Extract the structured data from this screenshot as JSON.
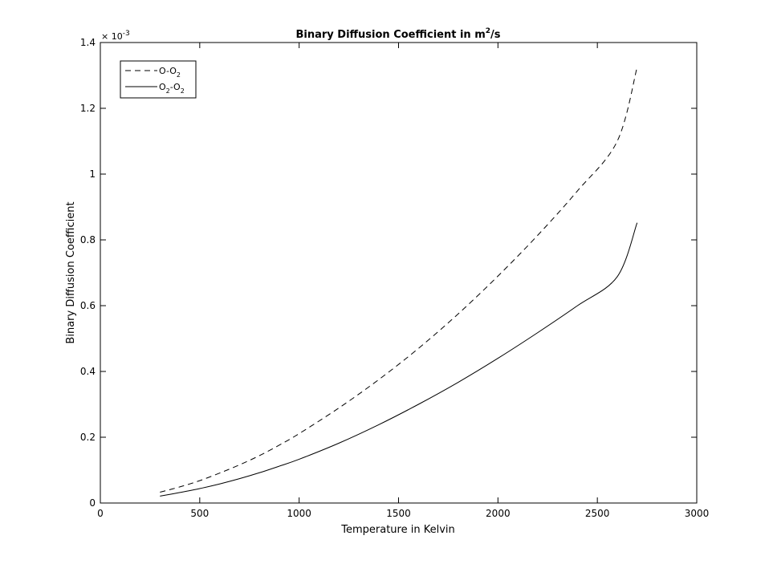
{
  "chart_data": {
    "type": "line",
    "title": {
      "prefix": "Binary Diffusion Coefficient in m",
      "sup": "2",
      "suffix": "/s"
    },
    "xlabel": "Temperature in Kelvin",
    "ylabel": "Binary Diffusion Coefficient",
    "y_exponent": {
      "base": "× 10",
      "sup": "-3"
    },
    "xlim": [
      0,
      3000
    ],
    "ylim": [
      0,
      1.4
    ],
    "xticks": [
      0,
      500,
      1000,
      1500,
      2000,
      2500,
      3000
    ],
    "yticks": [
      0,
      0.2,
      0.4,
      0.6,
      0.8,
      1,
      1.2,
      1.4
    ],
    "xtick_labels": [
      "0",
      "500",
      "1000",
      "1500",
      "2000",
      "2500",
      "3000"
    ],
    "ytick_labels": [
      "0",
      "0.2",
      "0.4",
      "0.6",
      "0.8",
      "1",
      "1.2",
      "1.4"
    ],
    "grid": false,
    "legend_position": "top-left",
    "series": [
      {
        "name": {
          "parts": [
            "O-O",
            "2",
            ""
          ]
        },
        "style": "dashed",
        "color": "#000000",
        "x": [
          300,
          400,
          500,
          600,
          700,
          800,
          900,
          1000,
          1200,
          1400,
          1600,
          1800,
          2000,
          2200,
          2400,
          2600,
          2700
        ],
        "y": [
          0.033,
          0.049,
          0.068,
          0.091,
          0.116,
          0.144,
          0.176,
          0.211,
          0.289,
          0.375,
          0.47,
          0.575,
          0.69,
          0.814,
          0.949,
          1.1,
          1.325
        ]
      },
      {
        "name": {
          "parts": [
            "O",
            "2",
            "-O",
            "2",
            ""
          ]
        },
        "style": "solid",
        "color": "#000000",
        "x": [
          300,
          400,
          500,
          600,
          700,
          800,
          900,
          1000,
          1200,
          1400,
          1600,
          1800,
          2000,
          2200,
          2400,
          2600,
          2700
        ],
        "y": [
          0.021,
          0.032,
          0.044,
          0.058,
          0.074,
          0.092,
          0.112,
          0.133,
          0.182,
          0.238,
          0.3,
          0.367,
          0.44,
          0.518,
          0.6,
          0.688,
          0.852
        ]
      }
    ]
  }
}
